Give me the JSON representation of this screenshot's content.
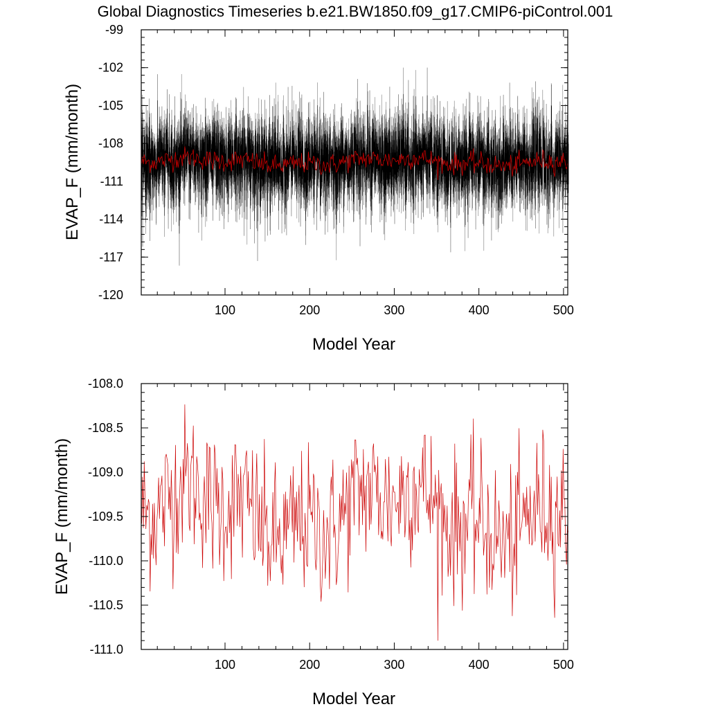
{
  "figure_title": "Global Diagnostics Timeseries b.e21.BW1850.f09_g17.CMIP6-piControl.001",
  "colors": {
    "monthly": "#000000",
    "monthly_light": "#777777",
    "annual": "#cc0000",
    "axis": "#000000"
  },
  "chart_data": [
    {
      "type": "line",
      "title": "Global Diagnostics Timeseries b.e21.BW1850.f09_g17.CMIP6-piControl.001",
      "xlabel": "Model Year",
      "ylabel": "EVAP_F (mm/month)",
      "xlim": [
        1,
        505
      ],
      "ylim": [
        -120,
        -99
      ],
      "x_ticks": [
        100,
        200,
        300,
        400,
        500
      ],
      "x_tick_labels": [
        "100",
        "200",
        "300",
        "400",
        "500"
      ],
      "y_ticks": [
        -99,
        -102,
        -105,
        -108,
        -111,
        -114,
        -117,
        -120
      ],
      "y_tick_labels": [
        "-99",
        "-102",
        "-105",
        "-108",
        "-111",
        "-114",
        "-117",
        "-120"
      ],
      "grid": false,
      "series": [
        {
          "name": "monthly",
          "color": "#000000",
          "description_values": "monthly global mean, approx -109.5 mean, range about -118 to -102",
          "mean": -109.5,
          "min": -118.0,
          "max": -102.0
        },
        {
          "name": "annual mean",
          "color": "#cc0000",
          "mean": -109.5,
          "min": -110.9,
          "max": -108.1
        }
      ]
    },
    {
      "type": "line",
      "xlabel": "Model Year",
      "ylabel": "EVAP_F (mm/month)",
      "xlim": [
        1,
        505
      ],
      "ylim": [
        -111.0,
        -108.0
      ],
      "x_ticks": [
        100,
        200,
        300,
        400,
        500
      ],
      "x_tick_labels": [
        "100",
        "200",
        "300",
        "400",
        "500"
      ],
      "y_ticks": [
        -108.0,
        -108.5,
        -109.0,
        -109.5,
        -110.0,
        -110.5,
        -111.0
      ],
      "y_tick_labels": [
        "-108.0",
        "-108.5",
        "-109.0",
        "-109.5",
        "-110.0",
        "-110.5",
        "-111.0"
      ],
      "grid": false,
      "series": [
        {
          "name": "annual mean",
          "color": "#cc0000",
          "mean": -109.5,
          "min": -110.9,
          "max": -108.1
        }
      ]
    }
  ]
}
